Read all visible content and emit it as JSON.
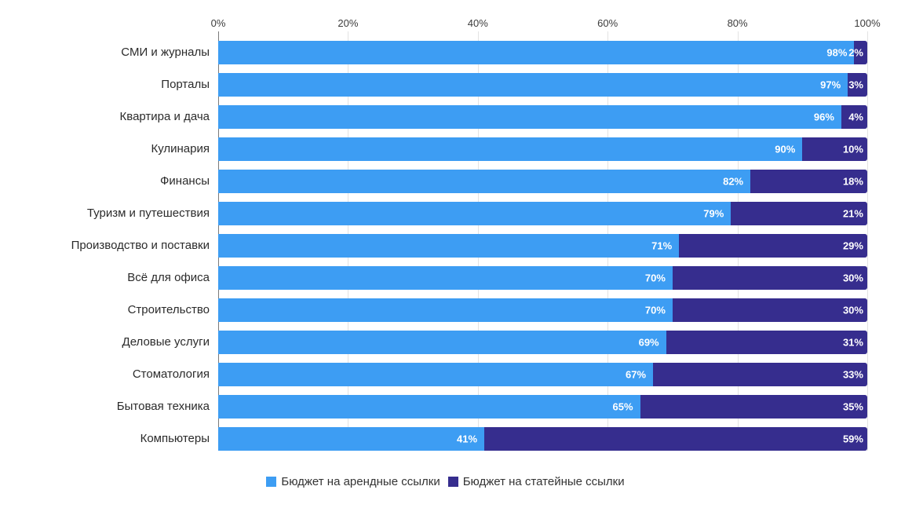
{
  "chart_data": {
    "type": "bar",
    "orientation": "horizontal",
    "stacked": true,
    "title": "",
    "xlabel": "",
    "ylabel": "",
    "xlim": [
      0,
      100
    ],
    "grid": true,
    "legend_position": "bottom",
    "value_suffix": "%",
    "x_ticks": [
      {
        "label": "0%",
        "value": 0
      },
      {
        "label": "20%",
        "value": 20
      },
      {
        "label": "40%",
        "value": 40
      },
      {
        "label": "60%",
        "value": 60
      },
      {
        "label": "80%",
        "value": 80
      },
      {
        "label": "100%",
        "value": 100
      }
    ],
    "categories": [
      "СМИ и журналы",
      "Порталы",
      "Квартира и дача",
      "Кулинария",
      "Финансы",
      "Туризм и путешествия",
      "Производство и поставки",
      "Всё для офиса",
      "Строительство",
      "Деловые услуги",
      "Стоматология",
      "Бытовая техника",
      "Компьютеры"
    ],
    "series": [
      {
        "name": "Бюджет на арендные ссылки",
        "color": "#3d9df3",
        "values": [
          98,
          97,
          96,
          90,
          82,
          79,
          71,
          70,
          70,
          69,
          67,
          65,
          41
        ]
      },
      {
        "name": "Бюджет на статейные ссылки",
        "color": "#362d8e",
        "values": [
          2,
          3,
          4,
          10,
          18,
          21,
          29,
          30,
          30,
          31,
          33,
          35,
          59
        ]
      }
    ]
  },
  "colors": {
    "background": "#ffffff",
    "gridline": "#e3e3e3",
    "axis_line": "#7a7a7a",
    "tick_text": "#3c3c3c",
    "category_text": "#2b2b2b",
    "value_text": "#ffffff"
  }
}
